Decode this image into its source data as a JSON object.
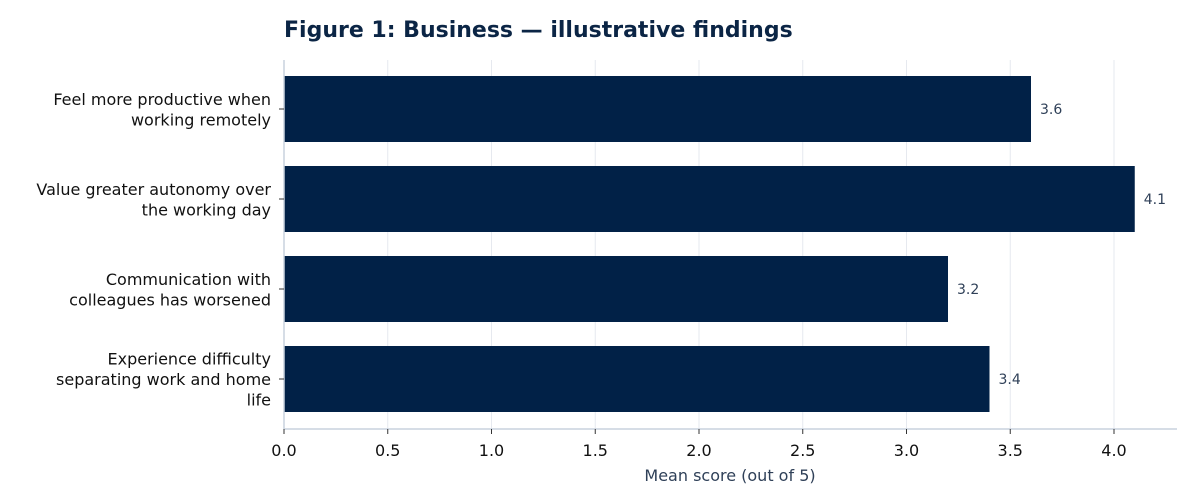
{
  "chart_data": {
    "type": "bar",
    "orientation": "horizontal",
    "title": "Figure 1: Business — illustrative findings",
    "xlabel": "Mean score (out of 5)",
    "ylabel": "",
    "categories": [
      [
        "Feel more productive when",
        "working remotely"
      ],
      [
        "Value greater autonomy over",
        "the working day"
      ],
      [
        "Communication with",
        "colleagues has worsened"
      ],
      [
        "Experience difficulty",
        "separating work and home",
        "life"
      ]
    ],
    "values": [
      3.6,
      4.1,
      3.2,
      3.4
    ],
    "value_labels": [
      "3.6",
      "4.1",
      "3.2",
      "3.4"
    ],
    "xlim": [
      0,
      4.3
    ],
    "xticks": [
      0.0,
      0.5,
      1.0,
      1.5,
      2.0,
      2.5,
      3.0,
      3.5,
      4.0
    ],
    "xtick_labels": [
      "0.0",
      "0.5",
      "1.0",
      "1.5",
      "2.0",
      "2.5",
      "3.0",
      "3.5",
      "4.0"
    ],
    "grid": "vertical",
    "colors": {
      "bar": "#012147",
      "grid": "#e6e9ef",
      "axis": "#c9d2de",
      "title": "#0b2545",
      "data_label": "#2f4058"
    }
  }
}
